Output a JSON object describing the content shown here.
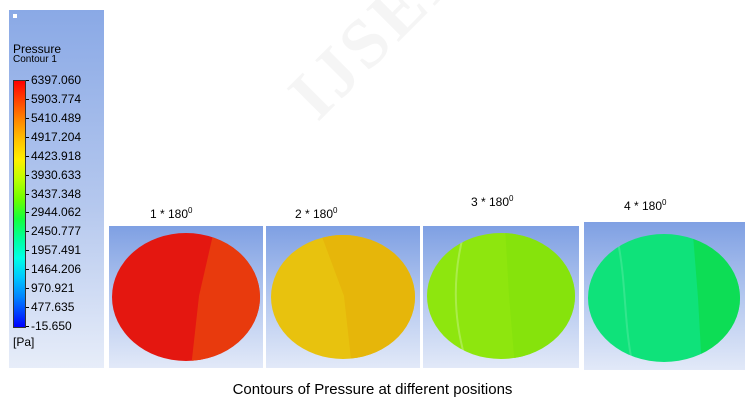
{
  "legend": {
    "title": "Pressure",
    "subtitle": "Contour 1",
    "ticks": [
      "6397.060",
      "5903.774",
      "5410.489",
      "4917.204",
      "4423.918",
      "3930.633",
      "3437.348",
      "2944.062",
      "2450.777",
      "1957.491",
      "1464.206",
      "970.921",
      "477.635",
      "-15.650"
    ],
    "unit": "[Pa]"
  },
  "panels": [
    {
      "label": "1 * 180",
      "sup": "0",
      "left_color": "#e41710",
      "right_color": "#e83a0d"
    },
    {
      "label": "2 * 180",
      "sup": "0",
      "left_color": "#e8c20e",
      "right_color": "#e6b60a"
    },
    {
      "label": "3 * 180",
      "sup": "0",
      "left_color": "#8ee60e",
      "right_color": "#86e30c"
    },
    {
      "label": "4 * 180",
      "sup": "0",
      "left_color": "#0fe27a",
      "right_color": "#0ddd55"
    }
  ],
  "caption": "Contours of Pressure at different positions"
}
